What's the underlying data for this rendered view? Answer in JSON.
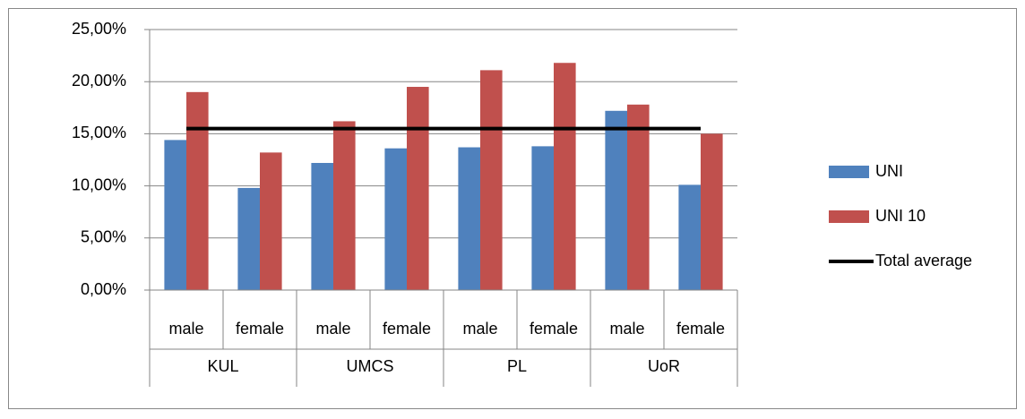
{
  "chart_data": {
    "type": "bar",
    "categories": [
      "male",
      "female",
      "male",
      "female",
      "male",
      "female",
      "male",
      "female"
    ],
    "groups": [
      "KUL",
      "UMCS",
      "PL",
      "UoR"
    ],
    "series": [
      {
        "name": "UNI",
        "type": "bar",
        "color": "#4f81bd",
        "values": [
          14.4,
          9.8,
          12.2,
          13.6,
          13.7,
          13.8,
          17.2,
          10.1
        ]
      },
      {
        "name": "UNI 10",
        "type": "bar",
        "color": "#c0504d",
        "values": [
          19.0,
          13.2,
          16.2,
          19.5,
          21.1,
          21.8,
          17.8,
          15.0
        ]
      },
      {
        "name": "Total average",
        "type": "line",
        "color": "#000000",
        "values": [
          15.5,
          15.5,
          15.5,
          15.5,
          15.5,
          15.5,
          15.5,
          15.5
        ]
      }
    ],
    "ylim": [
      0,
      25
    ],
    "yticks": [
      {
        "value": 0,
        "label": "0,00%"
      },
      {
        "value": 5,
        "label": "5,00%"
      },
      {
        "value": 10,
        "label": "10,00%"
      },
      {
        "value": 15,
        "label": "15,00%"
      },
      {
        "value": 20,
        "label": "20,00%"
      },
      {
        "value": 25,
        "label": "25,00%"
      }
    ],
    "grid": true,
    "legend": "right"
  }
}
